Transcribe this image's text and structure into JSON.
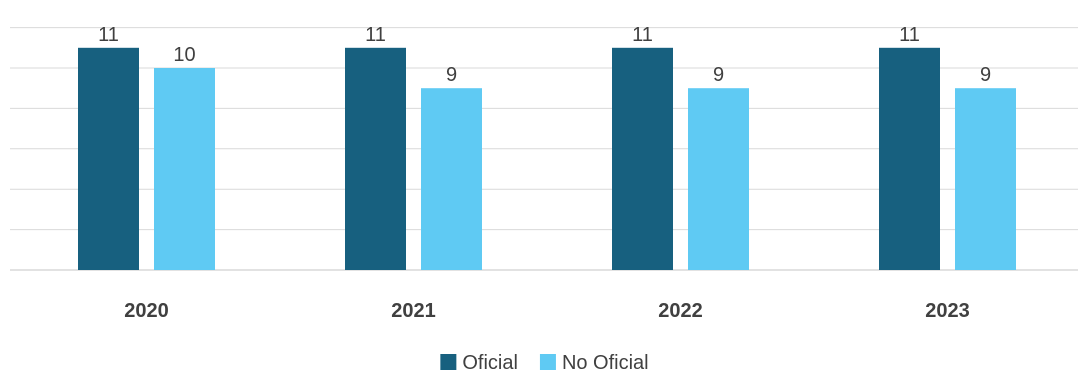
{
  "chart_data": {
    "type": "bar",
    "categories": [
      "2020",
      "2021",
      "2022",
      "2023"
    ],
    "series": [
      {
        "name": "Oficial",
        "values": [
          11,
          11,
          11,
          11
        ],
        "color": "#17607f"
      },
      {
        "name": "No Oficial",
        "values": [
          10,
          9,
          9,
          9
        ],
        "color": "#5fcaf3"
      }
    ],
    "ylim": [
      0,
      12
    ],
    "grid": true,
    "legend_position": "bottom"
  }
}
